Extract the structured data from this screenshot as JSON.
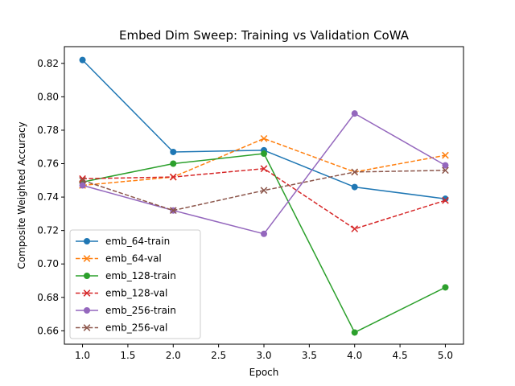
{
  "chart_data": {
    "type": "line",
    "title": "Embed Dim Sweep: Training vs Validation CoWA",
    "xlabel": "Epoch",
    "ylabel": "Composite Weighted Accuracy",
    "xlim": [
      0.8,
      5.2
    ],
    "ylim": [
      0.652,
      0.83
    ],
    "xticks": [
      "1.0",
      "1.5",
      "2.0",
      "2.5",
      "3.0",
      "3.5",
      "4.0",
      "4.5",
      "5.0"
    ],
    "xtick_values": [
      1.0,
      1.5,
      2.0,
      2.5,
      3.0,
      3.5,
      4.0,
      4.5,
      5.0
    ],
    "yticks": [
      "0.66",
      "0.68",
      "0.70",
      "0.72",
      "0.74",
      "0.76",
      "0.78",
      "0.80",
      "0.82"
    ],
    "ytick_values": [
      0.66,
      0.68,
      0.7,
      0.72,
      0.74,
      0.76,
      0.78,
      0.8,
      0.82
    ],
    "grid": false,
    "legend_position": "lower-left",
    "x": [
      1,
      2,
      3,
      4,
      5
    ],
    "series": [
      {
        "name": "emb_64-train",
        "values": [
          0.822,
          0.767,
          0.768,
          0.746,
          0.739
        ],
        "color": "#1f77b4",
        "dash": "solid",
        "marker": "circle"
      },
      {
        "name": "emb_64-val",
        "values": [
          0.747,
          0.752,
          0.775,
          0.755,
          0.765
        ],
        "color": "#ff7f0e",
        "dash": "dashed",
        "marker": "x"
      },
      {
        "name": "emb_128-train",
        "values": [
          0.749,
          0.76,
          0.766,
          0.659,
          0.686
        ],
        "color": "#2ca02c",
        "dash": "solid",
        "marker": "circle"
      },
      {
        "name": "emb_128-val",
        "values": [
          0.751,
          0.752,
          0.757,
          0.721,
          0.738
        ],
        "color": "#d62728",
        "dash": "dashed",
        "marker": "x"
      },
      {
        "name": "emb_256-train",
        "values": [
          0.747,
          0.732,
          0.718,
          0.79,
          0.759
        ],
        "color": "#9467bd",
        "dash": "solid",
        "marker": "circle"
      },
      {
        "name": "emb_256-val",
        "values": [
          0.75,
          0.732,
          0.744,
          0.755,
          0.756
        ],
        "color": "#8c564b",
        "dash": "dashed",
        "marker": "x"
      }
    ]
  }
}
